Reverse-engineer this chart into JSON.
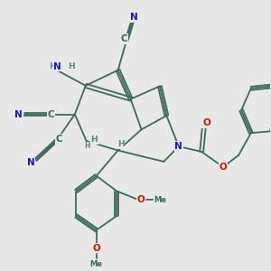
{
  "background_color": "#e8e8e8",
  "bond_color": "#3d6b5a",
  "bond_lw": 1.3,
  "atom_colors": {
    "N": "#1414cc",
    "O": "#cc1400",
    "C": "#3d6b5a",
    "H": "#5a8a78"
  },
  "figsize": [
    3.0,
    3.0
  ],
  "dpi": 100,
  "xlim": [
    0,
    10
  ],
  "ylim": [
    0,
    10
  ]
}
